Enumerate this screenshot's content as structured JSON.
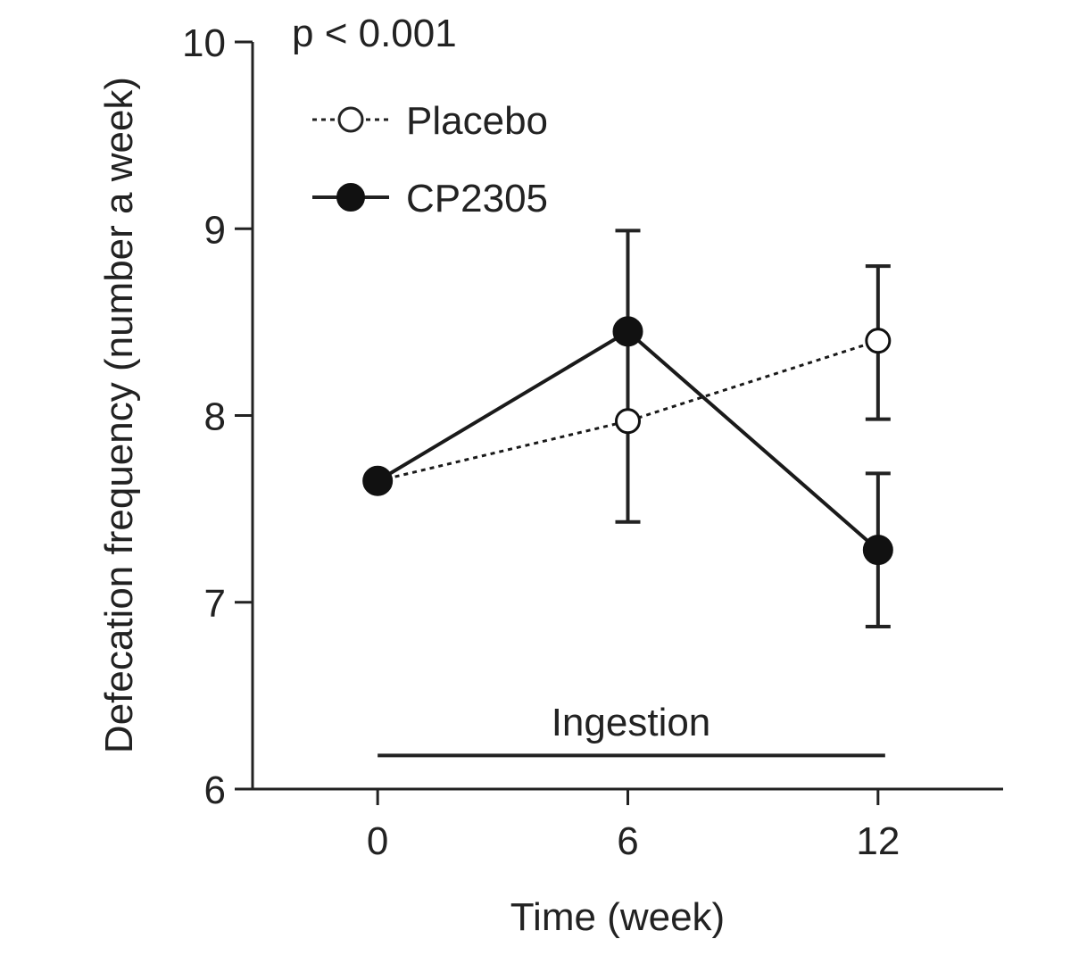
{
  "chart_data": {
    "type": "line",
    "title": "",
    "xlabel": "Time (week)",
    "ylabel": "Defecation frequency (number a week)",
    "x": [
      0,
      6,
      12
    ],
    "x_ticks": [
      "0",
      "6",
      "12"
    ],
    "y_ticks": [
      "6",
      "7",
      "8",
      "9",
      "10"
    ],
    "xlim": [
      -3,
      15
    ],
    "ylim": [
      6,
      10
    ],
    "grid": false,
    "legend": "top-left",
    "annotations": {
      "p_value": "p < 0.001",
      "period_label": "Ingestion",
      "period_range": [
        0,
        12
      ],
      "period_y": 6.18
    },
    "series": [
      {
        "name": "Placebo",
        "style": "dotted-open-circle",
        "color": "#1a1a1a",
        "values": [
          7.65,
          7.97,
          8.4
        ],
        "error_low": [
          null,
          7.43,
          7.98
        ],
        "error_high": [
          null,
          8.99,
          8.8
        ]
      },
      {
        "name": "CP2305",
        "style": "solid-filled-circle",
        "color": "#1a1a1a",
        "values": [
          7.65,
          8.45,
          7.28
        ],
        "error_low": [
          null,
          null,
          6.87
        ],
        "error_high": [
          null,
          null,
          7.69
        ]
      }
    ]
  }
}
